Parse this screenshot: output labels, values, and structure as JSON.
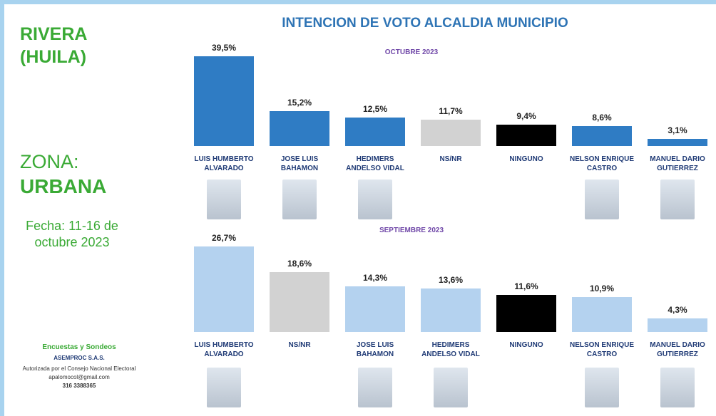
{
  "side": {
    "place": [
      "RIVERA",
      "(HUILA)"
    ],
    "zone": [
      "ZONA:",
      "URBANA"
    ],
    "date": "Fecha: 11-16 de octubre 2023",
    "pollster": "Encuestas y Sondeos",
    "company": "ASEMPROC S.A.S.",
    "authorization": "Autorizada por el Consejo Nacional Electoral",
    "email": "apalomocol@gmail.com",
    "phone": "316 3388365"
  },
  "title": "INTENCION DE VOTO ALCALDIA MUNICIPIO",
  "chart_data": [
    {
      "type": "bar",
      "subtitle": "OCTUBRE 2023",
      "categories": [
        "LUIS HUMBERTO ALVARADO",
        "JOSE LUIS BAHAMON",
        "HEDIMERS ANDELSO VIDAL",
        "NS/NR",
        "NINGUNO",
        "NELSON ENRIQUE CASTRO",
        "MANUEL DARIO GUTIERREZ"
      ],
      "values": [
        39.5,
        15.2,
        12.5,
        11.7,
        9.4,
        8.6,
        3.1
      ],
      "value_labels": [
        "39,5%",
        "15,2%",
        "12,5%",
        "11,7%",
        "9,4%",
        "8,6%",
        "3,1%"
      ],
      "colors": [
        "#2f7cc4",
        "#2f7cc4",
        "#2f7cc4",
        "#d2d2d2",
        "#000000",
        "#2f7cc4",
        "#2f7cc4"
      ]
    },
    {
      "type": "bar",
      "subtitle": "SEPTIEMBRE 2023",
      "categories": [
        "LUIS HUMBERTO ALVARADO",
        "NS/NR",
        "JOSE LUIS BAHAMON",
        "HEDIMERS ANDELSO VIDAL",
        "NINGUNO",
        "NELSON ENRIQUE CASTRO",
        "MANUEL DARIO GUTIERREZ"
      ],
      "values": [
        26.7,
        18.6,
        14.3,
        13.6,
        11.6,
        10.9,
        4.3
      ],
      "value_labels": [
        "26,7%",
        "18,6%",
        "14,3%",
        "13,6%",
        "11,6%",
        "10,9%",
        "4,3%"
      ],
      "colors": [
        "#b4d2ef",
        "#d2d2d2",
        "#b4d2ef",
        "#b4d2ef",
        "#000000",
        "#b4d2ef",
        "#b4d2ef"
      ]
    }
  ]
}
